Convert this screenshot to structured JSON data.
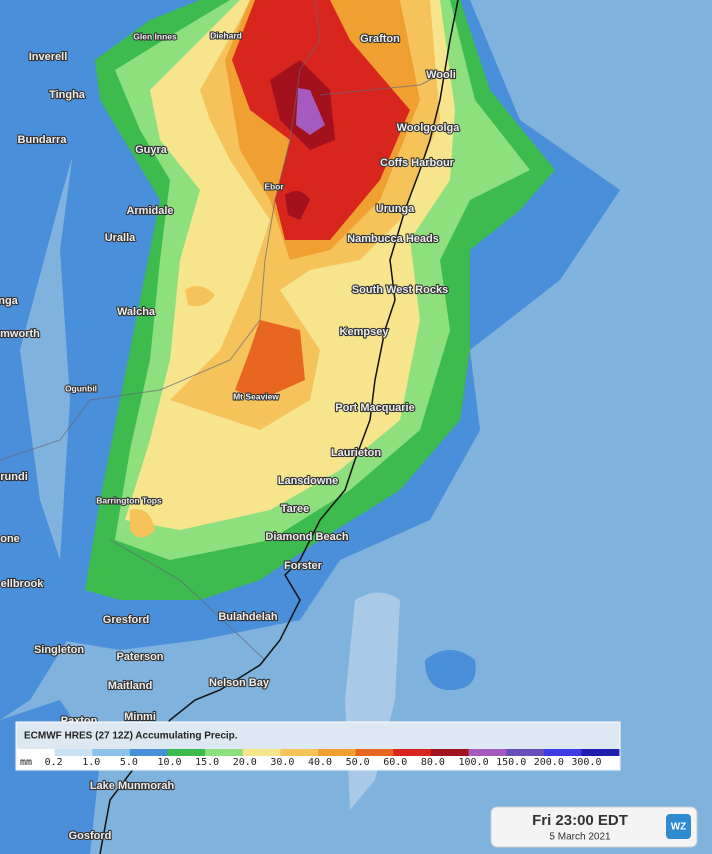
{
  "places": [
    {
      "name": "Glen Innes"
    },
    {
      "name": "Diehard"
    },
    {
      "name": "Grafton"
    },
    {
      "name": "Inverell"
    },
    {
      "name": "Wooli"
    },
    {
      "name": "Tingha"
    },
    {
      "name": "Woolgoolga"
    },
    {
      "name": "Bundarra"
    },
    {
      "name": "Guyra"
    },
    {
      "name": "Coffs Harbour"
    },
    {
      "name": "Ebor"
    },
    {
      "name": "Armidale"
    },
    {
      "name": "Urunga"
    },
    {
      "name": "Uralla"
    },
    {
      "name": "Nambucca Heads"
    },
    {
      "name": "South West Rocks"
    },
    {
      "name": "Walcha"
    },
    {
      "name": "Kempsey"
    },
    {
      "name": "nga"
    },
    {
      "name": "mworth"
    },
    {
      "name": "Ogunbil"
    },
    {
      "name": "Mt Seaview"
    },
    {
      "name": "Port Macquarie"
    },
    {
      "name": "Laurieton"
    },
    {
      "name": "rundi"
    },
    {
      "name": "Lansdowne"
    },
    {
      "name": "Barrington Tops"
    },
    {
      "name": "Taree"
    },
    {
      "name": "Diamond Beach"
    },
    {
      "name": "one"
    },
    {
      "name": "Forster"
    },
    {
      "name": "ellbrook"
    },
    {
      "name": "Gresford"
    },
    {
      "name": "Bulahdelah"
    },
    {
      "name": "Singleton"
    },
    {
      "name": "Paterson"
    },
    {
      "name": "Maitland"
    },
    {
      "name": "Nelson Bay"
    },
    {
      "name": "Minmi"
    },
    {
      "name": "Paxton"
    },
    {
      "name": "Lake Munmorah"
    },
    {
      "name": "Gosford"
    }
  ],
  "legend": {
    "title": "ECMWF HRES (27 12Z) Accumulating Precip.",
    "unit": "mm",
    "colors": [
      "#ffffff",
      "#c9e2f5",
      "#8cc3ec",
      "#4a90d9",
      "#3dbb4f",
      "#8ee07f",
      "#f6e58d",
      "#f5c35a",
      "#f0a030",
      "#e8661f",
      "#d8261e",
      "#a3101e",
      "#a45bbd",
      "#6a4fb8",
      "#3d3de0",
      "#2020b0"
    ],
    "labels": [
      "0.2",
      "1.0",
      "5.0",
      "10.0",
      "15.0",
      "20.0",
      "30.0",
      "40.0",
      "50.0",
      "60.0",
      "80.0",
      "100.0",
      "150.0",
      "200.0",
      "300.0"
    ]
  },
  "timestamp": {
    "time": "Fri 23:00 EDT",
    "date": "5 March 2021"
  },
  "logo": "WZ"
}
